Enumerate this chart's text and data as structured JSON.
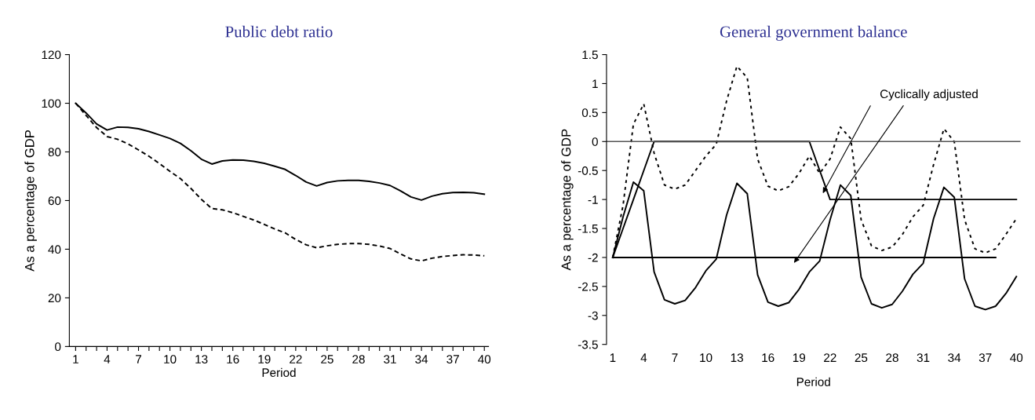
{
  "chart_data": [
    {
      "type": "line",
      "title": "Public debt ratio",
      "xlabel": "Period",
      "ylabel": "As a percentage of GDP",
      "categories": [
        "1",
        null,
        null,
        "4",
        null,
        null,
        "7",
        null,
        null,
        "10",
        null,
        null,
        "13",
        null,
        null,
        "16",
        null,
        null,
        "19",
        null,
        null,
        "22",
        null,
        null,
        "25",
        null,
        null,
        "28",
        null,
        null,
        "31",
        null,
        null,
        "34",
        null,
        null,
        "37",
        null,
        null,
        "40"
      ],
      "ylim": [
        0,
        120
      ],
      "yticks": [
        0,
        20,
        40,
        60,
        80,
        100,
        120
      ],
      "grid": false,
      "series": [
        {
          "color": "#000000",
          "line_style": "solid",
          "values": [
            100,
            96,
            91.5,
            89,
            90.2,
            90.1,
            89.5,
            88.4,
            87,
            85.5,
            83.5,
            80.5,
            77,
            75,
            76.3,
            76.7,
            76.6,
            76.1,
            75.3,
            74.1,
            72.8,
            70.3,
            67.6,
            66,
            67.4,
            68.1,
            68.3,
            68.3,
            67.9,
            67.2,
            66.2,
            64,
            61.5,
            60.2,
            61.8,
            62.8,
            63.3,
            63.4,
            63.2,
            62.6
          ]
        },
        {
          "color": "#000000",
          "line_style": "dashed",
          "values": [
            100,
            95,
            90,
            86.3,
            85.2,
            83.3,
            80.8,
            78.2,
            75.2,
            72,
            69,
            65,
            60.5,
            56.7,
            56.2,
            55,
            53.5,
            52,
            50.2,
            48.3,
            46.7,
            44,
            41.8,
            40.6,
            41.4,
            42,
            42.3,
            42.3,
            42,
            41.3,
            40.3,
            38.1,
            36,
            35.2,
            36.3,
            37,
            37.4,
            37.7,
            37.6,
            37.3
          ]
        }
      ]
    },
    {
      "type": "line",
      "title": "General government balance",
      "xlabel": "Period",
      "ylabel": "As a percentage of GDP",
      "categories": [
        "1",
        null,
        null,
        "4",
        null,
        null,
        "7",
        null,
        null,
        "10",
        null,
        null,
        "13",
        null,
        null,
        "16",
        null,
        null,
        "19",
        null,
        null,
        "22",
        null,
        null,
        "25",
        null,
        null,
        "28",
        null,
        null,
        "31",
        null,
        null,
        "34",
        null,
        null,
        "37",
        null,
        null,
        "40"
      ],
      "ylim": [
        -3.5,
        1.5
      ],
      "yticks": [
        -3.5,
        -3,
        -2.5,
        -2,
        -1.5,
        -1,
        -0.5,
        0,
        0.5,
        1,
        1.5
      ],
      "grid": false,
      "ref_lines": [
        {
          "axis": "y",
          "value": 0,
          "color": "#555555"
        }
      ],
      "annotations": [
        "Cyclically adjusted"
      ],
      "series": [
        {
          "color": "#000000",
          "line_style": "solid",
          "values": [
            -2,
            -1.3,
            -0.7,
            -0.85,
            -2.25,
            -2.73,
            -2.8,
            -2.74,
            -2.52,
            -2.23,
            -2.03,
            -1.27,
            -0.72,
            -0.9,
            -2.3,
            -2.77,
            -2.84,
            -2.78,
            -2.55,
            -2.25,
            -2.06,
            -1.35,
            -0.75,
            -0.93,
            -2.34,
            -2.8,
            -2.87,
            -2.81,
            -2.58,
            -2.29,
            -2.1,
            -1.33,
            -0.79,
            -0.96,
            -2.37,
            -2.84,
            -2.9,
            -2.84,
            -2.62,
            -2.33
          ]
        },
        {
          "color": "#000000",
          "line_style": "dotted",
          "values": [
            -2,
            -1.1,
            0.3,
            0.65,
            -0.2,
            -0.75,
            -0.82,
            -0.75,
            -0.5,
            -0.25,
            -0.05,
            0.7,
            1.3,
            1.1,
            -0.3,
            -0.77,
            -0.85,
            -0.78,
            -0.55,
            -0.25,
            -0.55,
            -0.3,
            0.25,
            0.05,
            -1.35,
            -1.8,
            -1.88,
            -1.82,
            -1.6,
            -1.3,
            -1.1,
            -0.4,
            0.22,
            0,
            -1.35,
            -1.85,
            -1.92,
            -1.85,
            -1.6,
            -1.33
          ]
        },
        {
          "color": "#000000",
          "line_style": "solid",
          "values": [
            -2,
            -1.5,
            -1,
            -0.5,
            0,
            0,
            0,
            0,
            0,
            0,
            0,
            0,
            0,
            0,
            0,
            0,
            0,
            0,
            0,
            0,
            -0.5,
            -1,
            -1,
            -1,
            -1,
            -1,
            -1,
            -1,
            -1,
            -1,
            -1,
            -1,
            -1,
            -1,
            -1,
            -1,
            -1,
            -1,
            -1,
            -1
          ]
        },
        {
          "color": "#000000",
          "line_style": "solid",
          "values": [
            -2,
            -2,
            -2,
            -2,
            -2,
            -2,
            -2,
            -2,
            -2,
            -2,
            -2,
            -2,
            -2,
            -2,
            -2,
            -2,
            -2,
            -2,
            -2,
            -2,
            -2,
            -2,
            -2,
            -2,
            -2,
            -2,
            -2,
            -2,
            -2,
            -2,
            -2,
            -2,
            -2,
            -2,
            -2,
            -2,
            -2,
            -2,
            null,
            null
          ]
        }
      ]
    }
  ]
}
